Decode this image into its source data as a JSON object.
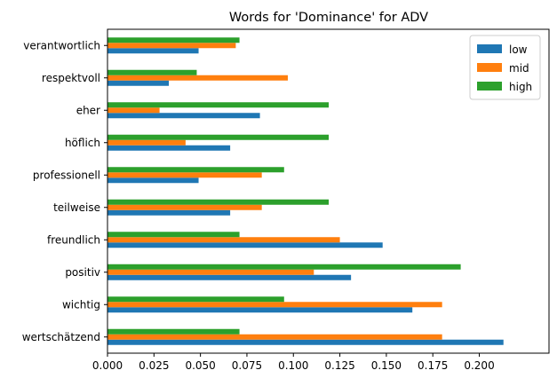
{
  "chart_data": {
    "type": "bar",
    "orientation": "horizontal",
    "title": "Words for 'Dominance' for ADV",
    "xlabel": "",
    "ylabel": "",
    "xlim": [
      0,
      0.2375
    ],
    "xticks": [
      0.0,
      0.025,
      0.05,
      0.075,
      0.1,
      0.125,
      0.15,
      0.175,
      0.2
    ],
    "xtick_labels": [
      "0.000",
      "0.025",
      "0.050",
      "0.075",
      "0.100",
      "0.125",
      "0.150",
      "0.175",
      "0.200"
    ],
    "grid": false,
    "legend_position": "top-right",
    "categories": [
      "wertschätzend",
      "wichtig",
      "positiv",
      "freundlich",
      "teilweise",
      "professionell",
      "höflich",
      "eher",
      "respektvoll",
      "verantwortlich"
    ],
    "series": [
      {
        "name": "low",
        "color": "#1f77b4",
        "values": [
          0.213,
          0.164,
          0.131,
          0.148,
          0.066,
          0.049,
          0.066,
          0.082,
          0.033,
          0.049
        ]
      },
      {
        "name": "mid",
        "color": "#ff7f0e",
        "values": [
          0.18,
          0.18,
          0.111,
          0.125,
          0.083,
          0.083,
          0.042,
          0.028,
          0.097,
          0.069
        ]
      },
      {
        "name": "high",
        "color": "#2ca02c",
        "values": [
          0.071,
          0.095,
          0.19,
          0.071,
          0.119,
          0.095,
          0.119,
          0.119,
          0.048,
          0.071
        ]
      }
    ]
  }
}
